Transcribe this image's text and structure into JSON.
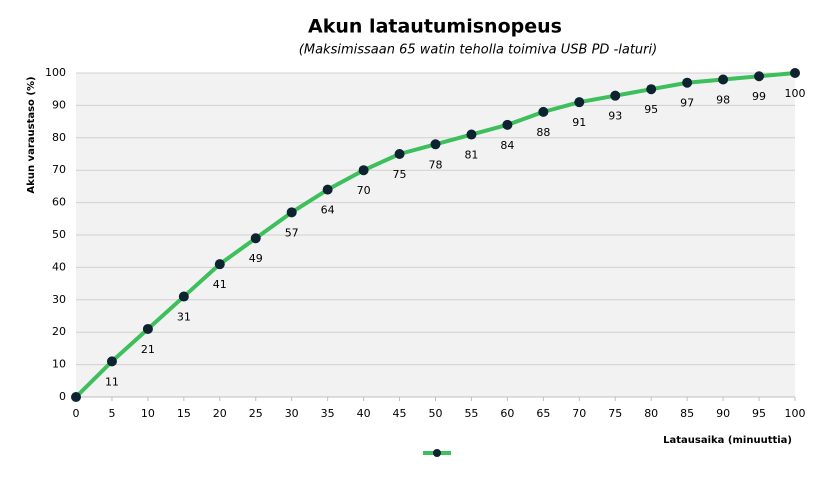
{
  "chart_data": {
    "type": "line",
    "title": "Akun latautumisnopeus",
    "subtitle": "(Maksimissaan 65 watin teholla toimiva USB PD -laturi)",
    "x_label": "Latausaika (minuuttia)",
    "y_label": "Akun varaustaso (%)",
    "x": [
      0,
      5,
      10,
      15,
      20,
      25,
      30,
      35,
      40,
      45,
      50,
      55,
      60,
      65,
      70,
      75,
      80,
      85,
      90,
      95,
      100
    ],
    "series": [
      {
        "color": "#3dbf5c",
        "marker_color": "#0d2330",
        "values": [
          0,
          11,
          21,
          31,
          41,
          49,
          57,
          64,
          70,
          75,
          78,
          81,
          84,
          88,
          91,
          93,
          95,
          97,
          98,
          99,
          100
        ],
        "value_labels": [
          null,
          "11",
          "21",
          "31",
          "41",
          "49",
          "57",
          "64",
          "70",
          "75",
          "78",
          "81",
          "84",
          "88",
          "91",
          "93",
          "95",
          "97",
          "98",
          "99",
          "100"
        ]
      }
    ],
    "xlim": [
      0,
      100
    ],
    "xticks": [
      0,
      5,
      10,
      15,
      20,
      25,
      30,
      35,
      40,
      45,
      50,
      55,
      60,
      65,
      70,
      75,
      80,
      85,
      90,
      95,
      100
    ],
    "ylim": [
      0,
      100
    ],
    "yticks": [
      0,
      10,
      20,
      30,
      40,
      50,
      60,
      70,
      80,
      90,
      100
    ],
    "grid": true,
    "legend": "bottom"
  }
}
